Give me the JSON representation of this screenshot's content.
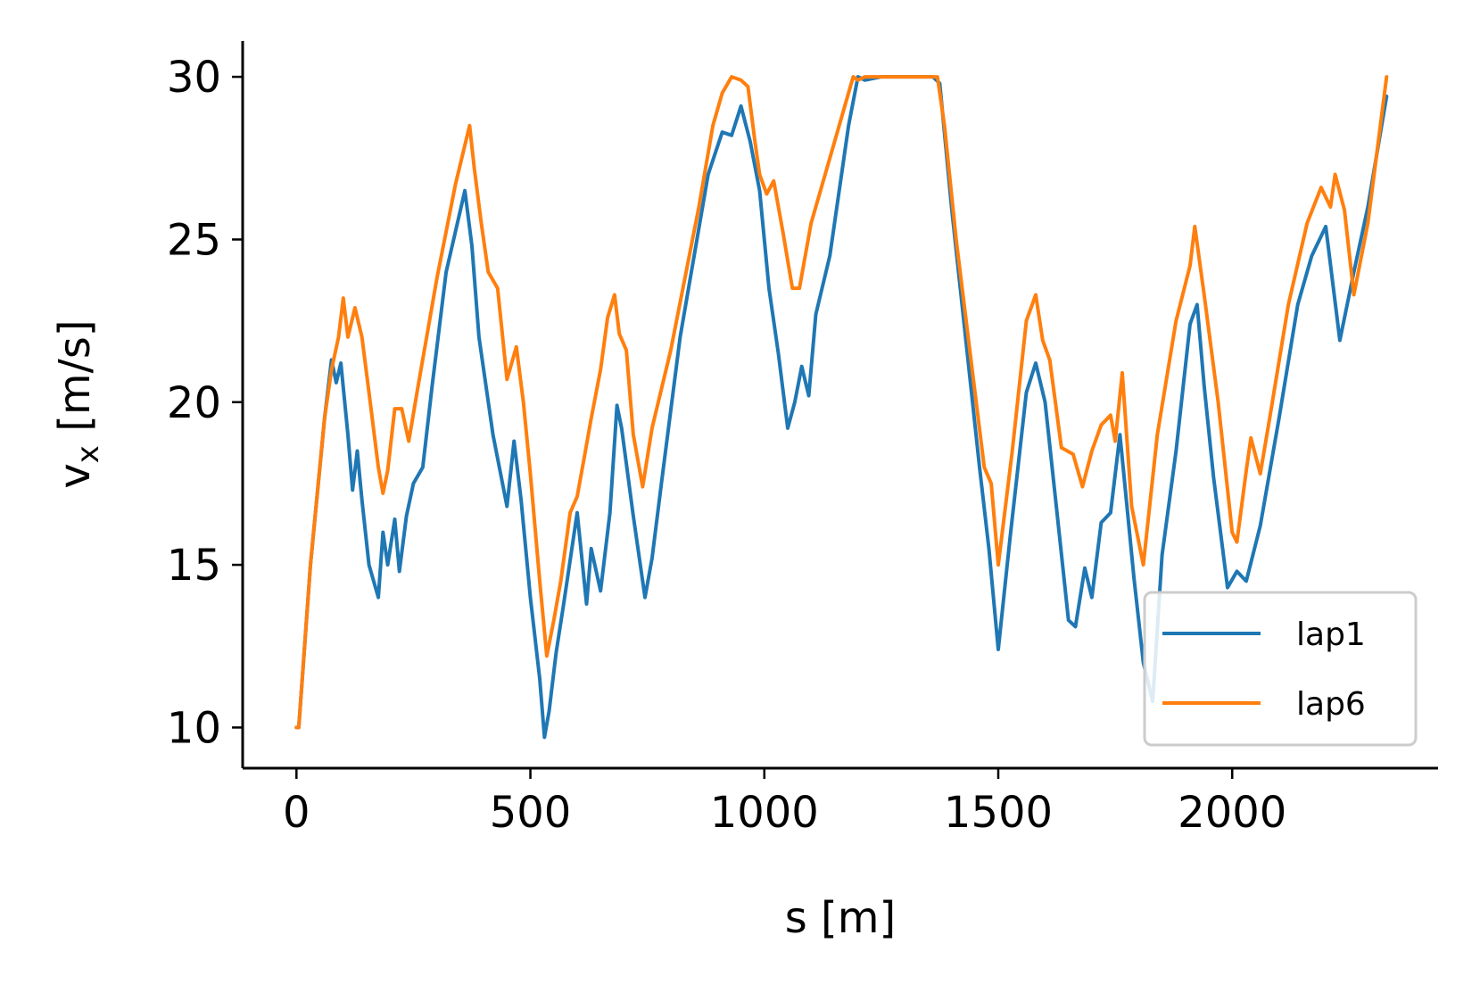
{
  "chart_data": {
    "type": "line",
    "xlabel": "s [m]",
    "ylabel_main": "v",
    "ylabel_sub": "x",
    "ylabel_unit": " [m/s]",
    "xlim": [
      -115,
      2440
    ],
    "ylim": [
      8.75,
      31.1
    ],
    "x_ticks": [
      0,
      500,
      1000,
      1500,
      2000
    ],
    "y_ticks": [
      10,
      15,
      20,
      25,
      30
    ],
    "grid": false,
    "legend_position": "bottom-right",
    "series": [
      {
        "name": "lap1",
        "color": "#1f77b4",
        "x": [
          0,
          5,
          30,
          60,
          75,
          85,
          95,
          110,
          120,
          130,
          140,
          155,
          175,
          185,
          195,
          210,
          220,
          235,
          250,
          270,
          290,
          320,
          360,
          375,
          390,
          420,
          450,
          465,
          480,
          500,
          520,
          530,
          540,
          555,
          570,
          600,
          620,
          630,
          650,
          670,
          685,
          695,
          720,
          745,
          760,
          780,
          820,
          880,
          910,
          930,
          950,
          970,
          990,
          1010,
          1030,
          1050,
          1065,
          1080,
          1095,
          1110,
          1140,
          1180,
          1200,
          1215,
          1250,
          1300,
          1360,
          1375,
          1400,
          1430,
          1460,
          1480,
          1500,
          1525,
          1560,
          1580,
          1600,
          1630,
          1650,
          1665,
          1685,
          1700,
          1720,
          1740,
          1760,
          1790,
          1810,
          1830,
          1850,
          1880,
          1910,
          1925,
          1940,
          1960,
          1990,
          2010,
          2030,
          2060,
          2100,
          2140,
          2170,
          2200,
          2230,
          2260,
          2290,
          2330
        ],
        "y": [
          10.0,
          10.0,
          15.0,
          19.5,
          21.3,
          20.6,
          21.2,
          19.0,
          17.3,
          18.5,
          17.0,
          15.0,
          14.0,
          16.0,
          15.0,
          16.4,
          14.8,
          16.5,
          17.5,
          18.0,
          20.5,
          24.0,
          26.5,
          24.8,
          22.0,
          19.0,
          16.8,
          18.8,
          17.0,
          14.0,
          11.5,
          9.7,
          10.5,
          12.3,
          13.7,
          16.6,
          13.8,
          15.5,
          14.2,
          16.6,
          19.9,
          19.2,
          16.5,
          14.0,
          15.2,
          17.5,
          22.0,
          27.0,
          28.3,
          28.2,
          29.1,
          28.0,
          26.5,
          23.5,
          21.5,
          19.2,
          20.0,
          21.1,
          20.2,
          22.7,
          24.5,
          28.5,
          30.0,
          29.9,
          30.0,
          30.0,
          30.0,
          29.8,
          26.0,
          22.0,
          18.0,
          15.5,
          12.4,
          15.8,
          20.3,
          21.2,
          20.0,
          16.0,
          13.3,
          13.1,
          14.9,
          14.0,
          16.3,
          16.6,
          19.0,
          14.6,
          12.0,
          10.8,
          15.3,
          18.5,
          22.4,
          23.0,
          20.5,
          17.7,
          14.3,
          14.8,
          14.5,
          16.2,
          19.5,
          23.0,
          24.5,
          25.4,
          21.9,
          24.0,
          26.0,
          29.4
        ]
      },
      {
        "name": "lap6",
        "color": "#ff7f0e",
        "x": [
          0,
          5,
          30,
          60,
          75,
          90,
          100,
          110,
          125,
          140,
          155,
          175,
          185,
          195,
          210,
          225,
          240,
          260,
          300,
          340,
          370,
          380,
          395,
          410,
          430,
          450,
          470,
          485,
          500,
          520,
          535,
          550,
          565,
          585,
          600,
          615,
          630,
          650,
          665,
          680,
          690,
          705,
          720,
          740,
          760,
          800,
          860,
          890,
          910,
          930,
          950,
          965,
          980,
          990,
          1005,
          1020,
          1040,
          1060,
          1075,
          1100,
          1140,
          1170,
          1190,
          1200,
          1215,
          1250,
          1300,
          1370,
          1385,
          1410,
          1440,
          1470,
          1485,
          1500,
          1530,
          1560,
          1580,
          1595,
          1610,
          1635,
          1660,
          1680,
          1700,
          1720,
          1740,
          1750,
          1765,
          1785,
          1810,
          1840,
          1880,
          1910,
          1920,
          1940,
          1970,
          2000,
          2010,
          2030,
          2040,
          2060,
          2080,
          2120,
          2160,
          2190,
          2210,
          2220,
          2240,
          2260,
          2290,
          2330
        ],
        "y": [
          10.0,
          10.0,
          15.0,
          19.5,
          21.0,
          22.0,
          23.2,
          22.0,
          22.9,
          22.0,
          20.3,
          18.0,
          17.2,
          17.9,
          19.8,
          19.8,
          18.8,
          20.5,
          23.8,
          26.7,
          28.5,
          27.2,
          25.5,
          24.0,
          23.5,
          20.7,
          21.7,
          20.0,
          17.8,
          14.5,
          12.2,
          13.3,
          14.5,
          16.6,
          17.1,
          18.3,
          19.5,
          21.0,
          22.6,
          23.3,
          22.1,
          21.6,
          19.0,
          17.4,
          19.2,
          21.6,
          26.0,
          28.5,
          29.5,
          30.0,
          29.9,
          29.7,
          28.0,
          27.0,
          26.4,
          26.8,
          25.2,
          23.5,
          23.5,
          25.5,
          27.5,
          29.0,
          30.0,
          29.9,
          30.0,
          30.0,
          30.0,
          30.0,
          28.5,
          25.0,
          21.5,
          18.0,
          17.5,
          15.0,
          18.5,
          22.5,
          23.3,
          21.9,
          21.3,
          18.6,
          18.4,
          17.4,
          18.5,
          19.3,
          19.6,
          18.8,
          20.9,
          16.8,
          15.0,
          19.0,
          22.5,
          24.2,
          25.4,
          23.3,
          20.0,
          16.0,
          15.7,
          17.9,
          18.9,
          17.8,
          19.5,
          23.0,
          25.5,
          26.6,
          26.0,
          27.0,
          25.9,
          23.3,
          25.5,
          30.0
        ]
      }
    ]
  }
}
